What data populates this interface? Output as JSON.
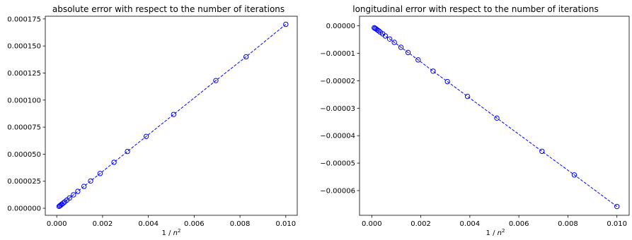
{
  "chart_data": [
    {
      "type": "scatter",
      "title": "absolute error with respect to the number of iterations",
      "xlabel": "1 / n²",
      "ylabel": "",
      "xlim": [
        -0.0005,
        0.0105
      ],
      "ylim": [
        -6.5e-06,
        0.0001775
      ],
      "xticks": [
        0.0,
        0.002,
        0.004,
        0.006,
        0.008,
        0.01
      ],
      "xtick_labels": [
        "0.000",
        "0.002",
        "0.004",
        "0.006",
        "0.008",
        "0.010"
      ],
      "yticks": [
        0,
        2.5e-05,
        5e-05,
        7.5e-05,
        0.0001,
        0.000125,
        0.00015,
        0.000175
      ],
      "ytick_labels": [
        "0.000000",
        "0.000025",
        "0.000050",
        "0.000075",
        "0.000100",
        "0.000125",
        "0.000150",
        "0.000175"
      ],
      "grid": false,
      "color": "#0000ff",
      "linestyle": "dashed",
      "marker": "circle-open",
      "series": [
        {
          "x": [
            0.01,
            0.008264,
            0.006944,
            0.005102,
            0.003906,
            0.003086,
            0.0025,
            0.00189,
            0.001479,
            0.001189,
            0.000918,
            0.00073,
            0.000556,
            0.000444,
            0.000346,
            0.000277,
            0.000216,
            0.000173,
            0.000133,
            0.0001
          ],
          "y": [
            0.00017,
            0.00014,
            0.000118,
            8.67e-05,
            6.64e-05,
            5.25e-05,
            4.25e-05,
            3.21e-05,
            2.52e-05,
            2.02e-05,
            1.56e-05,
            1.24e-05,
            9.5e-06,
            7.6e-06,
            5.9e-06,
            4.7e-06,
            3.7e-06,
            2.9e-06,
            2.3e-06,
            1.7e-06
          ]
        }
      ]
    },
    {
      "type": "scatter",
      "title": "longitudinal error with respect to the number of iterations",
      "xlabel": "1 / n²",
      "ylabel": "",
      "xlim": [
        -0.0005,
        0.0105
      ],
      "ylim": [
        -6.9e-05,
        3.5e-06
      ],
      "xticks": [
        0.0,
        0.002,
        0.004,
        0.006,
        0.008,
        0.01
      ],
      "xtick_labels": [
        "0.000",
        "0.002",
        "0.004",
        "0.006",
        "0.008",
        "0.010"
      ],
      "yticks": [
        0,
        -1e-05,
        -2e-05,
        -3e-05,
        -4e-05,
        -5e-05,
        -6e-05
      ],
      "ytick_labels": [
        "0.00000",
        "−0.00001",
        "−0.00002",
        "−0.00003",
        "−0.00004",
        "−0.00005",
        "−0.00006"
      ],
      "grid": false,
      "color": "#0000ff",
      "linestyle": "dashed",
      "marker": "circle-open",
      "series": [
        {
          "x": [
            0.01,
            0.008264,
            0.006944,
            0.005102,
            0.003906,
            0.003086,
            0.0025,
            0.00189,
            0.001479,
            0.001189,
            0.000918,
            0.00073,
            0.000556,
            0.000444,
            0.000346,
            0.000277,
            0.000216,
            0.000173,
            0.000133,
            0.0001
          ],
          "y": [
            -6.58e-05,
            -5.43e-05,
            -4.57e-05,
            -3.36e-05,
            -2.57e-05,
            -2.03e-05,
            -1.65e-05,
            -1.24e-05,
            -9.7e-06,
            -7.8e-06,
            -6e-06,
            -4.8e-06,
            -3.7e-06,
            -2.9e-06,
            -2.3e-06,
            -1.8e-06,
            -1.4e-06,
            -1.1e-06,
            -9e-07,
            -7e-07
          ]
        }
      ]
    }
  ]
}
